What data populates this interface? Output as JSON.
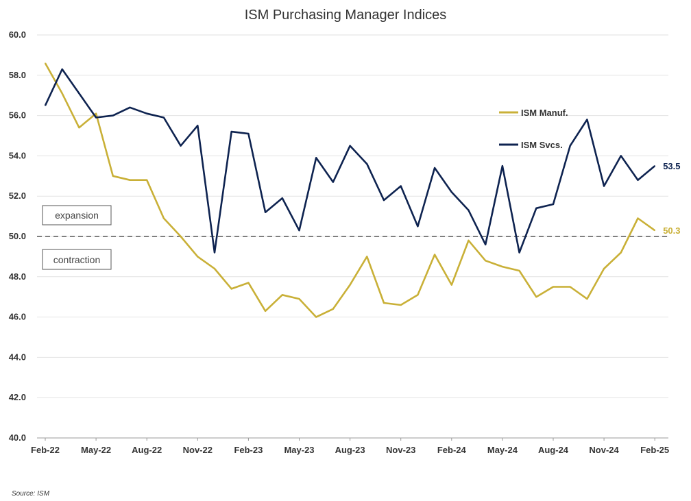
{
  "chart_data": {
    "type": "line",
    "title": "ISM Purchasing Manager Indices",
    "source": "Source: ISM",
    "ylim": [
      40,
      60
    ],
    "yticks": [
      "40.0",
      "42.0",
      "44.0",
      "46.0",
      "48.0",
      "50.0",
      "52.0",
      "54.0",
      "56.0",
      "58.0",
      "60.0"
    ],
    "xtick_labels": [
      "Feb-22",
      "May-22",
      "Aug-22",
      "Nov-22",
      "Feb-23",
      "May-23",
      "Aug-23",
      "Nov-23",
      "Feb-24",
      "May-24",
      "Aug-24",
      "Nov-24",
      "Feb-25"
    ],
    "x": [
      "Feb-22",
      "Mar-22",
      "Apr-22",
      "May-22",
      "Jun-22",
      "Jul-22",
      "Aug-22",
      "Sep-22",
      "Oct-22",
      "Nov-22",
      "Dec-22",
      "Jan-23",
      "Feb-23",
      "Mar-23",
      "Apr-23",
      "May-23",
      "Jun-23",
      "Jul-23",
      "Aug-23",
      "Sep-23",
      "Oct-23",
      "Nov-23",
      "Dec-23",
      "Jan-24",
      "Feb-24",
      "Mar-24",
      "Apr-24",
      "May-24",
      "Jun-24",
      "Jul-24",
      "Aug-24",
      "Sep-24",
      "Oct-24",
      "Nov-24",
      "Dec-24",
      "Jan-25",
      "Feb-25"
    ],
    "threshold": 50,
    "threshold_labels": {
      "above": "expansion",
      "below": "contraction"
    },
    "legend_position": "right",
    "grid": true,
    "series": [
      {
        "name": "ISM Manuf.",
        "color": "#C9B037",
        "end_label": "50.3",
        "values": [
          58.6,
          57.1,
          55.4,
          56.1,
          53.0,
          52.8,
          52.8,
          50.9,
          50.0,
          49.0,
          48.4,
          47.4,
          47.7,
          46.3,
          47.1,
          46.9,
          46.0,
          46.4,
          47.6,
          49.0,
          46.7,
          46.6,
          47.1,
          49.1,
          47.6,
          49.8,
          48.8,
          48.5,
          48.3,
          47.0,
          47.5,
          47.5,
          46.9,
          48.4,
          49.2,
          50.9,
          50.3
        ]
      },
      {
        "name": "ISM Svcs.",
        "color": "#0E2350",
        "end_label": "53.5",
        "values": [
          56.5,
          58.3,
          57.1,
          55.9,
          56.0,
          56.4,
          56.1,
          55.9,
          54.5,
          55.5,
          49.2,
          55.2,
          55.1,
          51.2,
          51.9,
          50.3,
          53.9,
          52.7,
          54.5,
          53.6,
          51.8,
          52.5,
          50.5,
          53.4,
          52.2,
          51.3,
          49.6,
          53.5,
          49.2,
          51.4,
          51.6,
          54.5,
          55.8,
          52.5,
          54.0,
          52.8,
          53.5
        ]
      }
    ]
  }
}
